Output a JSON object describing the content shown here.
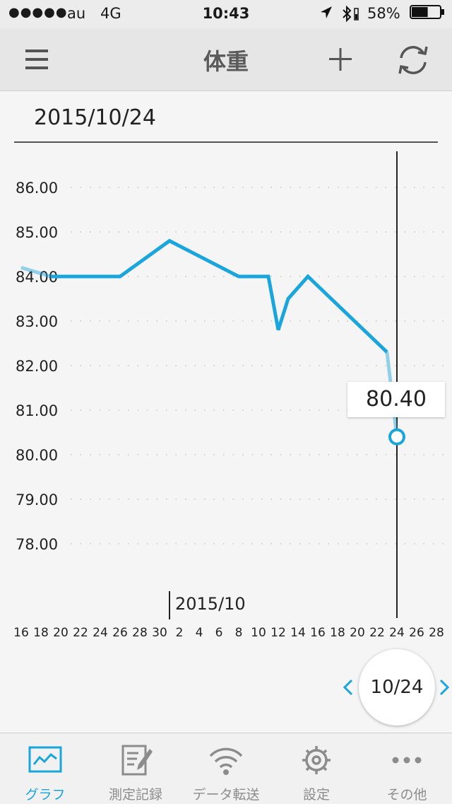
{
  "status_bar": {
    "signal": "●●●●●",
    "carrier": "au",
    "network": "4G",
    "time": "10:43",
    "battery_percent": "58%",
    "battery_level": 0.58
  },
  "nav": {
    "title": "体重"
  },
  "date_header": "2015/10/24",
  "chart_data": {
    "type": "line",
    "title": "",
    "xlabel": "",
    "ylabel": "",
    "ylim": [
      77.0,
      86.5
    ],
    "yticks": [
      "86.00",
      "85.00",
      "84.00",
      "83.00",
      "82.00",
      "81.00",
      "80.00",
      "79.00",
      "78.00"
    ],
    "ytick_values": [
      86,
      85,
      84,
      83,
      82,
      81,
      80,
      79,
      78
    ],
    "xticks": [
      "16",
      "18",
      "20",
      "22",
      "24",
      "26",
      "28",
      "30",
      "2",
      "4",
      "6",
      "8",
      "10",
      "12",
      "14",
      "16",
      "18",
      "20",
      "22",
      "24",
      "26",
      "28"
    ],
    "month_label": "2015/10",
    "grid": true,
    "series": [
      {
        "color": "#1aa5dc",
        "x": [
          "2015-09-16",
          "2015-09-19",
          "2015-09-20",
          "2015-09-26",
          "2015-10-01",
          "2015-10-08",
          "2015-10-11",
          "2015-10-12",
          "2015-10-13",
          "2015-10-15",
          "2015-10-23",
          "2015-10-24"
        ],
        "values": [
          84.2,
          84.0,
          84.0,
          84.0,
          84.8,
          84.0,
          84.0,
          82.8,
          83.5,
          84.0,
          82.3,
          80.4
        ]
      }
    ],
    "selected": {
      "x": "2015-10-24",
      "value": "80.40"
    }
  },
  "navigator": {
    "current_date": "10/24"
  },
  "tabs": [
    {
      "id": "graph",
      "label": "グラフ",
      "icon": "graph-icon",
      "active": true
    },
    {
      "id": "records",
      "label": "測定記録",
      "icon": "edit-icon",
      "active": false
    },
    {
      "id": "transfer",
      "label": "データ転送",
      "icon": "wifi-icon",
      "active": false
    },
    {
      "id": "settings",
      "label": "設定",
      "icon": "gear-icon",
      "active": false
    },
    {
      "id": "other",
      "label": "その他",
      "icon": "more-icon",
      "active": false
    }
  ],
  "colors": {
    "accent": "#1aa5dc",
    "inactive": "#8c8c8c"
  }
}
